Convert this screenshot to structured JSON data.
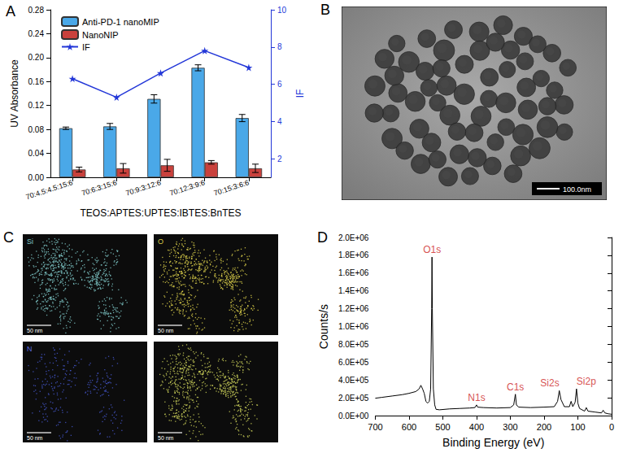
{
  "chart_data": [
    {
      "title": "A",
      "type": "bar",
      "categories": [
        "70:4.5:4.5:15:6",
        "70:6:3:15:6",
        "70:9:3:12:6",
        "70:12:3:9:6",
        "70:15:3:6:6"
      ],
      "series": [
        {
          "name": "Anti-PD-1 nanoMIP",
          "type": "bar",
          "color": "#4aa8e8",
          "values": [
            0.082,
            0.085,
            0.131,
            0.183,
            0.099
          ],
          "errors": [
            0.002,
            0.005,
            0.007,
            0.005,
            0.006
          ]
        },
        {
          "name": "NanoNIP",
          "type": "bar",
          "color": "#c9413c",
          "values": [
            0.013,
            0.015,
            0.02,
            0.025,
            0.015
          ],
          "errors": [
            0.004,
            0.008,
            0.01,
            0.003,
            0.007
          ]
        },
        {
          "name": "IF",
          "type": "line",
          "axis": "y2",
          "color": "#2337d8",
          "marker": "star",
          "line_style": "solid",
          "values": [
            6.3,
            5.3,
            6.6,
            7.8,
            6.9
          ]
        }
      ],
      "x_label": "TEOS:APTES:UPTES:IBTES:BnTES",
      "y_label": "UV Absorbance",
      "y2_label": "IF",
      "ylim": [
        0,
        0.28
      ],
      "yticks": [
        {
          "value": 0,
          "label": "0.00"
        },
        0.04,
        0.08,
        0.12,
        0.16,
        {
          "value": 0.2,
          "label": "0.20"
        },
        0.24,
        0.28
      ],
      "y2lim": [
        1,
        10
      ],
      "y2ticks": [
        2,
        4,
        6,
        8,
        10
      ],
      "legend": "top-left",
      "grid": false
    },
    {
      "title": "D",
      "type": "line",
      "color": "#000000",
      "x": [
        700,
        680,
        650,
        620,
        600,
        580,
        570,
        565,
        560,
        555,
        550,
        545,
        540,
        536,
        533,
        532,
        531,
        528,
        524,
        520,
        510,
        480,
        450,
        420,
        405,
        400,
        397,
        380,
        340,
        300,
        290,
        285,
        282,
        275,
        240,
        200,
        170,
        160,
        155,
        150,
        140,
        125,
        120,
        115,
        108,
        104,
        100,
        95,
        80,
        75,
        70,
        50,
        30,
        25,
        20,
        10,
        0
      ],
      "values": [
        195000,
        205000,
        220000,
        235000,
        250000,
        270000,
        300000,
        340000,
        300000,
        250000,
        160000,
        140000,
        160000,
        300000,
        1200000,
        1780000,
        1200000,
        300000,
        120000,
        70000,
        65000,
        75000,
        80000,
        85000,
        90000,
        120000,
        95000,
        90000,
        85000,
        90000,
        120000,
        240000,
        120000,
        95000,
        90000,
        95000,
        100000,
        160000,
        280000,
        180000,
        100000,
        100000,
        160000,
        100000,
        150000,
        300000,
        140000,
        80000,
        50000,
        90000,
        50000,
        40000,
        30000,
        60000,
        30000,
        20000,
        15000
      ],
      "x_label": "Binding Energy (eV)",
      "y_label": "Counts/s",
      "xlim": [
        700,
        0
      ],
      "xticks": [
        700,
        600,
        500,
        400,
        300,
        200,
        100,
        0
      ],
      "ylim": [
        0,
        2000000
      ],
      "yticks": [
        {
          "value": 0,
          "label": "0.0E+00"
        },
        {
          "value": 200000,
          "label": "2.0E+05"
        },
        {
          "value": 400000,
          "label": "4.0E+05"
        },
        {
          "value": 600000,
          "label": "6.0E+05"
        },
        {
          "value": 800000,
          "label": "8.0E+05"
        },
        {
          "value": 1000000,
          "label": "1.0E+06"
        },
        {
          "value": 1200000,
          "label": "1.2E+06"
        },
        {
          "value": 1400000,
          "label": "1.4E+06"
        },
        {
          "value": 1600000,
          "label": "1.6E+06"
        },
        {
          "value": 1800000,
          "label": "1.8E+06"
        },
        {
          "value": 2000000,
          "label": "2.0E+06"
        }
      ],
      "annotations": [
        {
          "text": "O1s",
          "x": 532,
          "y": 1780000
        },
        {
          "text": "N1s",
          "x": 400,
          "y": 120000
        },
        {
          "text": "C1s",
          "x": 285,
          "y": 240000
        },
        {
          "text": "Si2s",
          "x": 155,
          "y": 280000
        },
        {
          "text": "Si2p",
          "x": 104,
          "y": 300000
        }
      ],
      "grid": false
    }
  ],
  "images": [
    {
      "title": "B",
      "scale_bar": "100.0nm"
    },
    {
      "title": "C",
      "maps": [
        {
          "label": "Si",
          "scale_bar": "50 nm"
        },
        {
          "label": "O",
          "scale_bar": "50 nm"
        },
        {
          "label": "N",
          "scale_bar": "50 nm"
        },
        {
          "scale_bar": "50 nm"
        }
      ]
    }
  ]
}
